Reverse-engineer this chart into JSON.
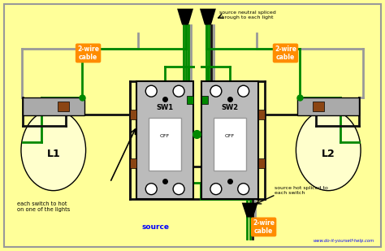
{
  "bg_color": "#FFFF99",
  "border_color": "#888888",
  "website": "www.do-it-yourself-help.com",
  "colors": {
    "black": "#000000",
    "white": "#FFFFFF",
    "green": "#00CC00",
    "dark_green": "#008800",
    "orange": "#FF8C00",
    "blue": "#0000CC",
    "brown": "#8B4513",
    "yellow": "#FFFF99",
    "switch_body": "#BBBBBB",
    "lamp_body": "#AAAAAA",
    "lamp_globe": "#FFFFCC",
    "wire_gray": "#999999",
    "wire_black": "#111111"
  },
  "note1": "source neutral spliced\nthrough to each light",
  "note2": "each switch to hot\non one of the lights",
  "note3": "source hot spliced to\neach switch",
  "source_label": "source",
  "cable_label": "2-wire\ncable"
}
